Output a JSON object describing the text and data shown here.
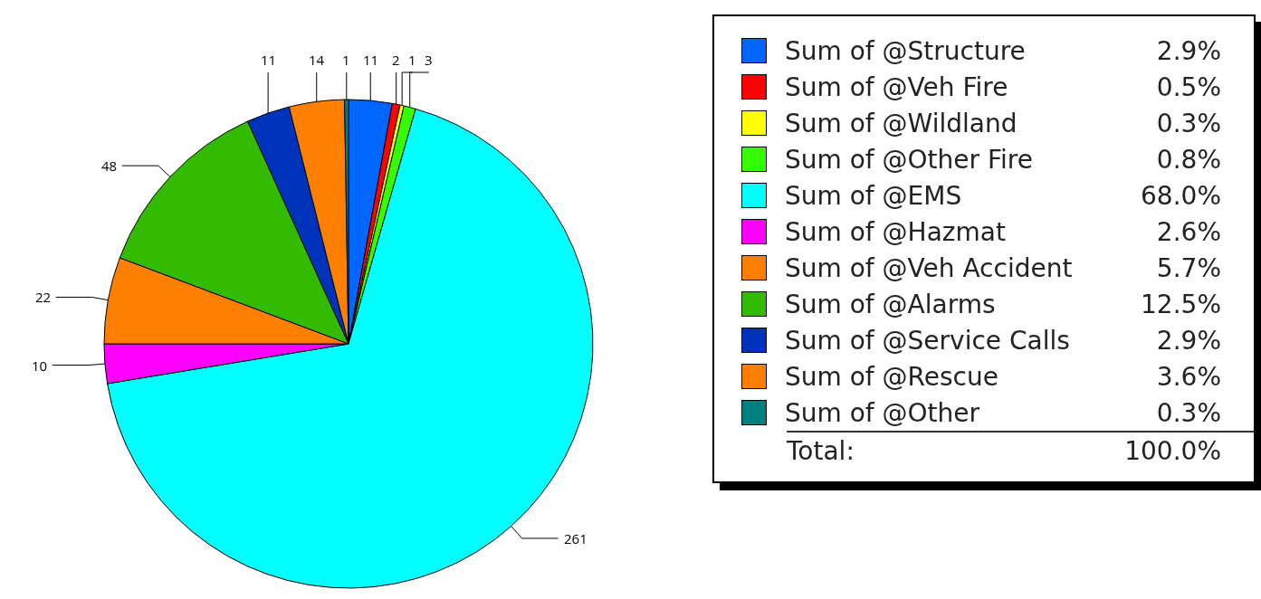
{
  "chart_data": {
    "type": "pie",
    "categories": [
      "Sum of @Structure",
      "Sum of @Veh Fire",
      "Sum of @Wildland",
      "Sum of @Other Fire",
      "Sum of @EMS",
      "Sum of @Hazmat",
      "Sum of @Veh Accident",
      "Sum of @Alarms",
      "Sum of @Service Calls",
      "Sum of @Rescue",
      "Sum of @Other"
    ],
    "values": [
      11,
      2,
      1,
      3,
      261,
      10,
      22,
      48,
      11,
      14,
      1
    ],
    "colors": [
      "#0066ff",
      "#ff0000",
      "#ffff00",
      "#33ff00",
      "#00ffff",
      "#ff00ff",
      "#ff8000",
      "#33bb00",
      "#0033bb",
      "#ff8000",
      "#007f7f"
    ],
    "data_labels": true,
    "legend": "right",
    "annotations": [
      "2.9%",
      "0.5%",
      "0.3%",
      "0.8%",
      "68.0%",
      "2.6%",
      "5.7%",
      "12.5%",
      "2.9%",
      "3.6%",
      "0.3%",
      "Total:",
      "100.0%"
    ]
  }
}
